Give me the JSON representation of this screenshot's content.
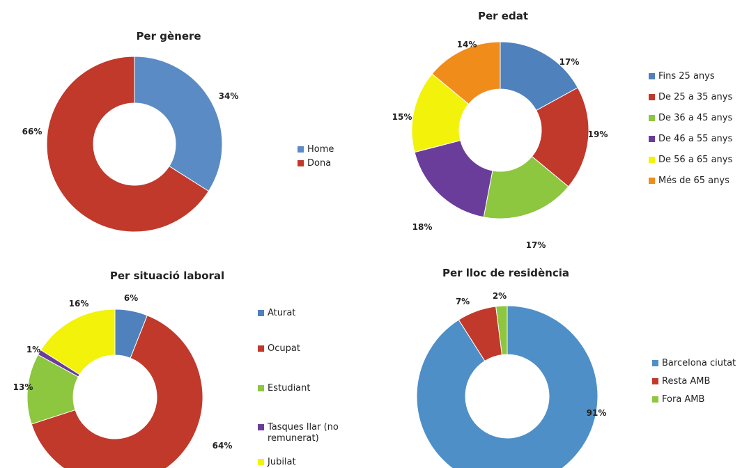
{
  "colors": {
    "blue": "#4f81bd",
    "red": "#c0504d",
    "green": "#9bbb59",
    "purple": "#7050a0",
    "yellow": "#f2f20a",
    "orange": "#f79646"
  },
  "chart_data": [
    {
      "type": "pie",
      "title": "Per gènere",
      "categories": [
        "Home",
        "Dona"
      ],
      "values": [
        34,
        66
      ],
      "labels": [
        "34%",
        "66%"
      ],
      "colors": [
        "#5b8bc4",
        "#c0392b"
      ],
      "legend": [
        "Home",
        "Dona"
      ],
      "legend_position": "right"
    },
    {
      "type": "pie",
      "title": "Per edat",
      "categories": [
        "Fins 25 anys",
        "De 25 a 35 anys",
        "De 36 a 45 anys",
        "De 46 a 55 anys",
        "De 56 a 65 anys",
        "Més de 65 anys"
      ],
      "values": [
        17,
        19,
        17,
        18,
        15,
        14
      ],
      "labels": [
        "17%",
        "19%",
        "17%",
        "18%",
        "15%",
        "14%"
      ],
      "colors": [
        "#4f81bd",
        "#c0392b",
        "#8dc63f",
        "#6a3d9a",
        "#f2f20a",
        "#f08c1a"
      ],
      "legend": [
        "Fins 25 anys",
        "De 25 a 35 anys",
        "De 36 a 45 anys",
        "De 46 a 55 anys",
        "De 56 a 65 anys",
        "Més de 65 anys"
      ],
      "legend_position": "right"
    },
    {
      "type": "pie",
      "title": "Per situació laboral",
      "categories": [
        "Aturat",
        "Ocupat",
        "Estudiant",
        "Tasques llar (no remunerat)",
        "Jubilat"
      ],
      "values": [
        6,
        64,
        13,
        1,
        16
      ],
      "labels": [
        "6%",
        "64%",
        "13%",
        "1%",
        "16%"
      ],
      "colors": [
        "#4f81bd",
        "#c0392b",
        "#8dc63f",
        "#6a3d9a",
        "#f2f20a"
      ],
      "legend": [
        "Aturat",
        "Ocupat",
        "Estudiant",
        "Tasques llar (no remunerat)",
        "Jubilat"
      ],
      "legend_position": "right"
    },
    {
      "type": "pie",
      "title": "Per lloc de residència",
      "categories": [
        "Barcelona ciutat",
        "Resta AMB",
        "Fora AMB"
      ],
      "values": [
        91,
        7,
        2
      ],
      "labels": [
        "91%",
        "7%",
        "2%"
      ],
      "colors": [
        "#4f8fc8",
        "#c0392b",
        "#8dc63f"
      ],
      "legend": [
        "Barcelona ciutat",
        "Resta AMB",
        "Fora AMB"
      ],
      "legend_position": "right"
    }
  ]
}
